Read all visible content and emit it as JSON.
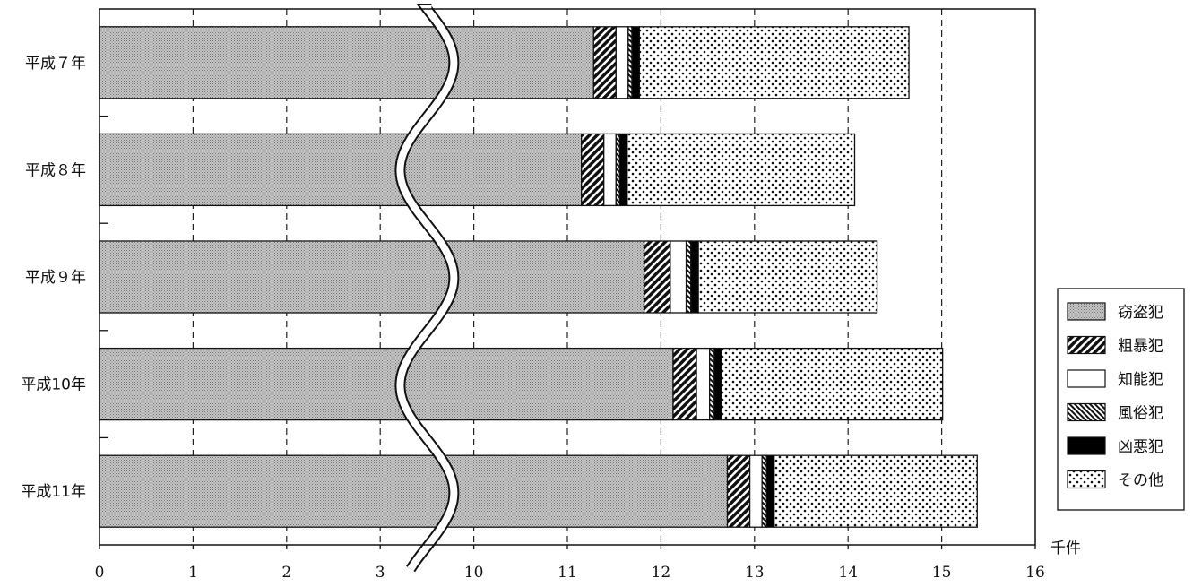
{
  "chart_data": {
    "type": "bar",
    "orientation": "horizontal",
    "stacked": true,
    "axis_break": "between 3 and 10 (wavy break line)",
    "categories": [
      "平成７年",
      "平成８年",
      "平成９年",
      "平成10年",
      "平成11年"
    ],
    "series": [
      {
        "name": "窃盗犯",
        "values": [
          11.28,
          11.15,
          11.82,
          12.13,
          12.71
        ]
      },
      {
        "name": "粗暴犯",
        "values": [
          0.24,
          0.24,
          0.28,
          0.25,
          0.24
        ]
      },
      {
        "name": "知能犯",
        "values": [
          0.13,
          0.13,
          0.17,
          0.14,
          0.13
        ]
      },
      {
        "name": "風俗犯",
        "values": [
          0.04,
          0.04,
          0.05,
          0.05,
          0.05
        ]
      },
      {
        "name": "凶悪犯",
        "values": [
          0.08,
          0.08,
          0.08,
          0.08,
          0.08
        ]
      },
      {
        "name": "その他",
        "values": [
          2.88,
          2.43,
          1.91,
          2.36,
          2.17
        ]
      }
    ],
    "x_ticks": [
      "0",
      "1",
      "2",
      "3",
      "10",
      "11",
      "12",
      "13",
      "14",
      "15",
      "16"
    ],
    "x_unit": "千件",
    "grid": "vertical dashed",
    "legend_position": "right"
  },
  "colors": {
    "窃盗犯": "#b3b3b3",
    "粗暴犯": "#4a4a4a",
    "知能犯": "#ffffff",
    "風俗犯": "#6a6a6a",
    "凶悪犯": "#000000",
    "その他": "#ffffff"
  }
}
